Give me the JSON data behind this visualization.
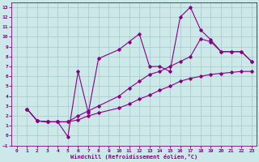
{
  "xlabel": "Windchill (Refroidissement éolien,°C)",
  "bg_color": "#cce8e8",
  "grid_color": "#a8c8c8",
  "line_color": "#880088",
  "xlim": [
    -0.5,
    23.5
  ],
  "ylim": [
    -1.0,
    13.5
  ],
  "xticks": [
    0,
    1,
    2,
    3,
    4,
    5,
    6,
    7,
    8,
    9,
    10,
    11,
    12,
    13,
    14,
    15,
    16,
    17,
    18,
    19,
    20,
    21,
    22,
    23
  ],
  "yticks": [
    -1,
    0,
    1,
    2,
    3,
    4,
    5,
    6,
    7,
    8,
    9,
    10,
    11,
    12,
    13
  ],
  "line1_x": [
    1,
    2,
    3,
    4,
    5,
    6,
    7,
    8,
    10,
    11,
    12,
    13,
    14,
    15,
    16,
    17,
    18,
    19,
    20,
    21,
    22,
    23
  ],
  "line1_y": [
    2.7,
    1.5,
    1.4,
    1.4,
    -0.1,
    6.5,
    2.3,
    7.8,
    8.7,
    9.5,
    10.3,
    7.0,
    7.0,
    6.5,
    12.0,
    13.0,
    10.7,
    9.7,
    8.5,
    8.5,
    8.5,
    7.5
  ],
  "line2_x": [
    1,
    2,
    3,
    4,
    5,
    6,
    7,
    8,
    10,
    11,
    12,
    13,
    14,
    15,
    16,
    17,
    18,
    19,
    20,
    21,
    22,
    23
  ],
  "line2_y": [
    2.7,
    1.5,
    1.4,
    1.4,
    1.4,
    1.6,
    2.0,
    2.3,
    2.8,
    3.2,
    3.7,
    4.1,
    4.6,
    5.0,
    5.5,
    5.8,
    6.0,
    6.2,
    6.3,
    6.4,
    6.5,
    6.5
  ],
  "line3_x": [
    1,
    2,
    3,
    4,
    5,
    6,
    7,
    8,
    10,
    11,
    12,
    13,
    14,
    15,
    16,
    17,
    18,
    19,
    20,
    21,
    22,
    23
  ],
  "line3_y": [
    2.7,
    1.5,
    1.4,
    1.4,
    1.4,
    2.0,
    2.5,
    3.0,
    4.0,
    4.8,
    5.5,
    6.2,
    6.5,
    7.0,
    7.5,
    8.0,
    9.8,
    9.5,
    8.5,
    8.5,
    8.5,
    7.5
  ]
}
